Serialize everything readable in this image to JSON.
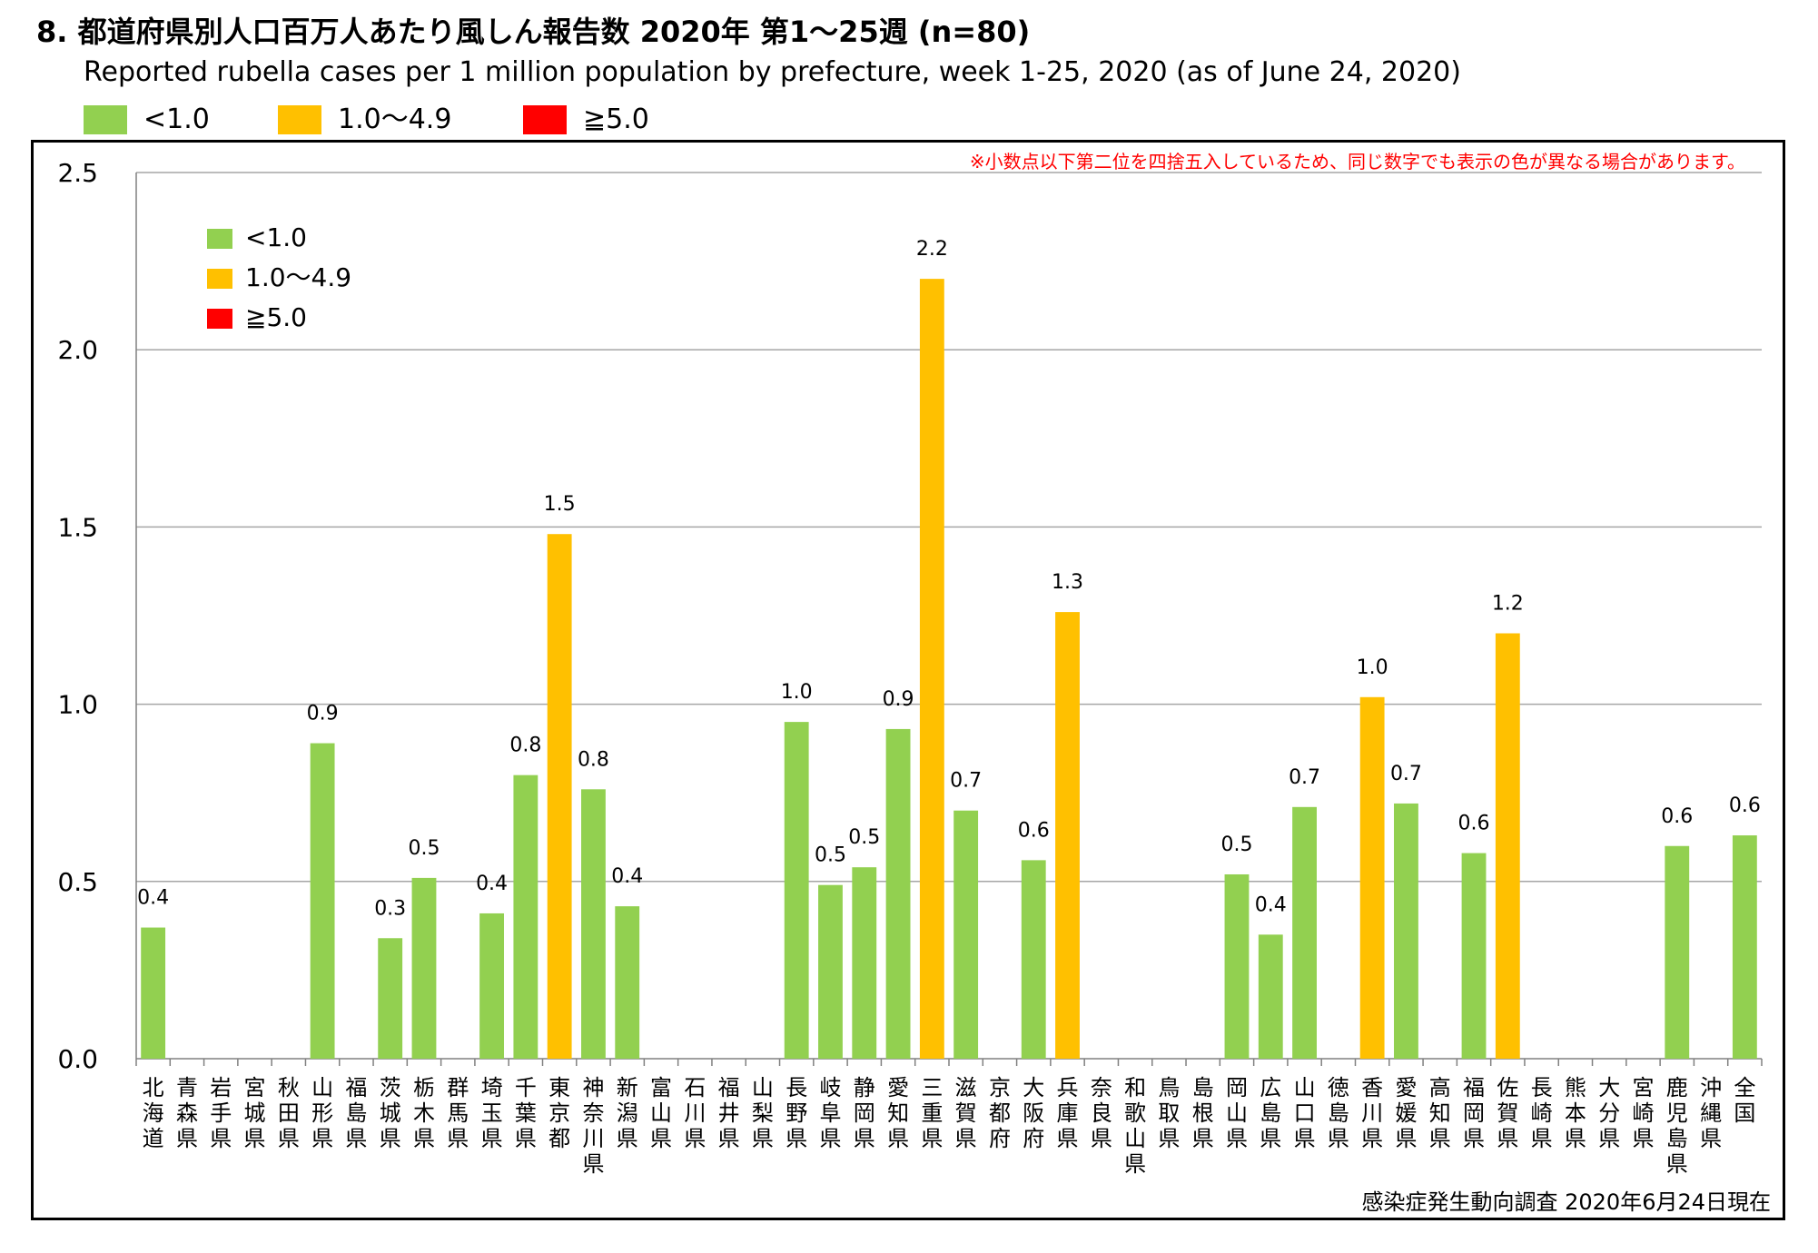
{
  "title": "8. 都道府県別人口百万人あたり風しん報告数 2020年 第1～25週 (n=80)",
  "subtitle": "Reported rubella cases per 1 million population by prefecture, week 1-25, 2020 (as of June 24, 2020)",
  "legend": [
    {
      "label": "<1.0",
      "color": "#92d050"
    },
    {
      "label": "1.0～4.9",
      "color": "#ffc000"
    },
    {
      "label": "≧5.0",
      "color": "#ff0000"
    }
  ],
  "note": "※小数点以下第二位を四捨五入しているため、同じ数字でも表示の色が異なる場合があります。",
  "source": "感染症発生動向調査 2020年6月24日現在",
  "chart_data": {
    "type": "bar",
    "ylim": [
      0,
      2.5
    ],
    "yticks": [
      0.0,
      0.5,
      1.0,
      1.5,
      2.0,
      2.5
    ],
    "ytick_labels": [
      "0.0",
      "0.5",
      "1.0",
      "1.5",
      "2.0",
      "2.5"
    ],
    "grid": true,
    "categories": [
      "北海道",
      "青森県",
      "岩手県",
      "宮城県",
      "秋田県",
      "山形県",
      "福島県",
      "茨城県",
      "栃木県",
      "群馬県",
      "埼玉県",
      "千葉県",
      "東京都",
      "神奈川県",
      "新潟県",
      "富山県",
      "石川県",
      "福井県",
      "山梨県",
      "長野県",
      "岐阜県",
      "静岡県",
      "愛知県",
      "三重県",
      "滋賀県",
      "京都府",
      "大阪府",
      "兵庫県",
      "奈良県",
      "和歌山県",
      "鳥取県",
      "島根県",
      "岡山県",
      "広島県",
      "山口県",
      "徳島県",
      "香川県",
      "愛媛県",
      "高知県",
      "福岡県",
      "佐賀県",
      "長崎県",
      "熊本県",
      "大分県",
      "宮崎県",
      "鹿児島県",
      "沖縄県",
      "全国"
    ],
    "values": [
      0.37,
      0,
      0,
      0,
      0,
      0.89,
      0,
      0.34,
      0.51,
      0,
      0.41,
      0.8,
      1.48,
      0.76,
      0.43,
      0,
      0,
      0,
      0,
      0.95,
      0.49,
      0.54,
      0.93,
      2.2,
      0.7,
      0,
      0.56,
      1.26,
      0,
      0,
      0,
      0,
      0.52,
      0.35,
      0.71,
      0,
      1.02,
      0.72,
      0,
      0.58,
      1.2,
      0,
      0,
      0,
      0,
      0.6,
      0,
      0.63
    ],
    "data_labels": [
      "0.4",
      "",
      "",
      "",
      "",
      "0.9",
      "",
      "0.3",
      "0.5",
      "",
      "0.4",
      "0.8",
      "1.5",
      "0.8",
      "0.4",
      "",
      "",
      "",
      "",
      "1.0",
      "0.5",
      "0.5",
      "0.9",
      "2.2",
      "0.7",
      "",
      "0.6",
      "1.3",
      "",
      "",
      "",
      "",
      "0.5",
      "0.4",
      "0.7",
      "",
      "1.0",
      "0.7",
      "",
      "0.6",
      "1.2",
      "",
      "",
      "",
      "",
      "0.6",
      "",
      "0.6"
    ],
    "bar_colors": [
      "#92d050",
      "",
      "",
      "",
      "",
      "#92d050",
      "",
      "#92d050",
      "#92d050",
      "",
      "#92d050",
      "#92d050",
      "#ffc000",
      "#92d050",
      "#92d050",
      "",
      "",
      "",
      "",
      "#92d050",
      "#92d050",
      "#92d050",
      "#92d050",
      "#ffc000",
      "#92d050",
      "",
      "#92d050",
      "#ffc000",
      "",
      "",
      "",
      "",
      "#92d050",
      "#92d050",
      "#92d050",
      "",
      "#ffc000",
      "#92d050",
      "",
      "#92d050",
      "#ffc000",
      "",
      "",
      "",
      "",
      "#92d050",
      "",
      "#92d050"
    ],
    "legend_position": "top-left"
  }
}
